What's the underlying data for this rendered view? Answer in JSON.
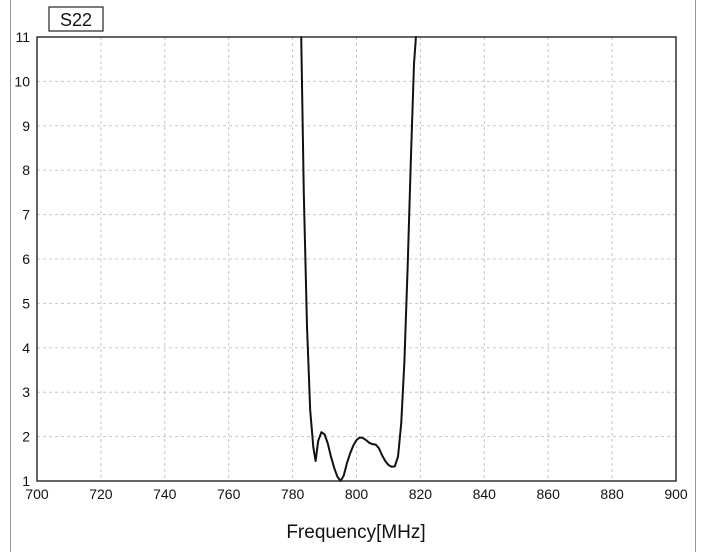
{
  "chart_data": {
    "type": "line",
    "title": "",
    "xlabel": "Frequency[MHz]",
    "ylabel": "",
    "xlim": [
      700,
      900
    ],
    "ylim": [
      1,
      11
    ],
    "grid": true,
    "legend_placement": "top-left",
    "x_ticks": [
      "700",
      "720",
      "740",
      "760",
      "780",
      "800",
      "820",
      "840",
      "860",
      "880",
      "900"
    ],
    "y_ticks": [
      "1",
      "2",
      "3",
      "4",
      "5",
      "6",
      "7",
      "8",
      "9",
      "10",
      "11"
    ],
    "series": [
      {
        "name": "S22",
        "color": "#111111",
        "x": [
          782.7,
          783.5,
          784.5,
          785.5,
          786.5,
          787.2,
          788.0,
          789.0,
          790.0,
          791.0,
          792.0,
          793.0,
          794.0,
          795.0,
          796.0,
          797.0,
          798.0,
          799.0,
          800.0,
          801.0,
          802.0,
          803.0,
          804.0,
          805.0,
          806.0,
          807.0,
          808.0,
          809.0,
          810.0,
          811.0,
          812.0,
          813.0,
          814.0,
          815.0,
          816.0,
          817.0,
          818.0,
          818.6
        ],
        "y": [
          11.0,
          7.5,
          4.5,
          2.6,
          1.75,
          1.45,
          1.9,
          2.1,
          2.05,
          1.85,
          1.55,
          1.3,
          1.1,
          1.0,
          1.12,
          1.4,
          1.62,
          1.8,
          1.92,
          1.98,
          1.97,
          1.92,
          1.86,
          1.83,
          1.82,
          1.74,
          1.58,
          1.45,
          1.36,
          1.32,
          1.33,
          1.55,
          2.3,
          3.7,
          5.8,
          8.2,
          10.4,
          11.0
        ]
      }
    ]
  }
}
